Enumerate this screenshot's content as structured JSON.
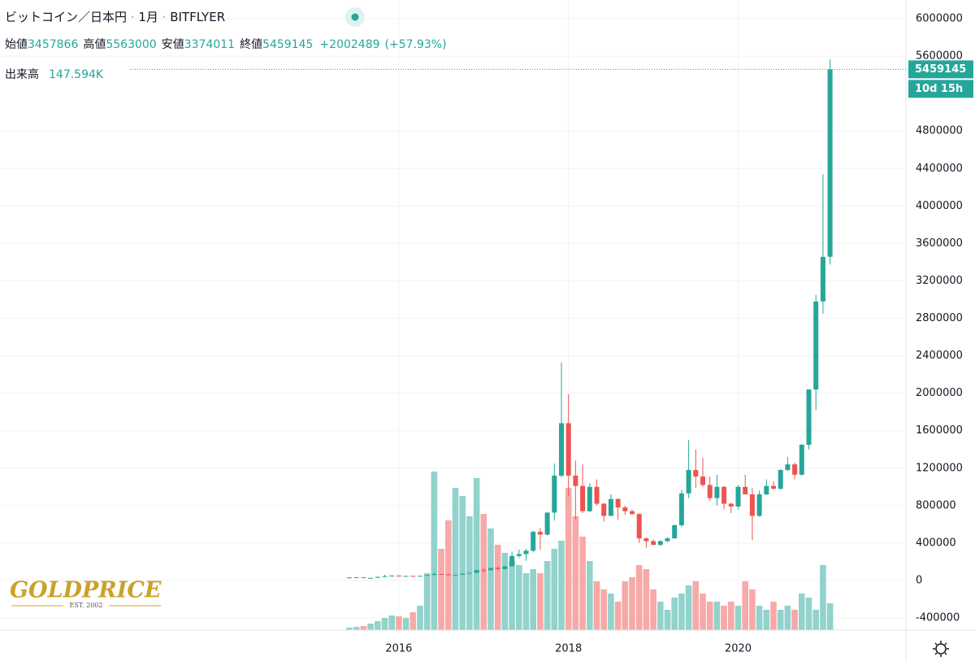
{
  "chart_data": {
    "type": "candlestick",
    "title": "ビットコイン／日本円",
    "interval": "1月",
    "exchange": "BITFLYER",
    "labels": {
      "open": "始値",
      "high": "高値",
      "low": "安値",
      "close": "終値",
      "volume": "出来高"
    },
    "change": "+2002489",
    "change_pct": "(+57.93%)",
    "volume_label": "147.594K",
    "countdown": "10d 15h",
    "watermark": {
      "name": "GOLDPRICE",
      "tagline": "EST. 2002"
    },
    "up_color": "#26a69a",
    "down_color": "#ef5350",
    "up_volume_color": "#92d2cc",
    "down_volume_color": "#f7a9a7",
    "ylim": [
      -530000,
      6200000
    ],
    "yticks": [
      6000000,
      5600000,
      4800000,
      4400000,
      4000000,
      3600000,
      3200000,
      2800000,
      2400000,
      2000000,
      1600000,
      1200000,
      800000,
      400000,
      0,
      -400000
    ],
    "grid": true,
    "categories": [
      null,
      null,
      null,
      null,
      null,
      null,
      null,
      "2016",
      null,
      null,
      null,
      null,
      null,
      null,
      null,
      null,
      null,
      null,
      null,
      null,
      null,
      null,
      null,
      null,
      null,
      null,
      null,
      null,
      null,
      null,
      null,
      "2018",
      null,
      null,
      null,
      null,
      null,
      null,
      null,
      null,
      null,
      null,
      null,
      null,
      null,
      null,
      null,
      null,
      null,
      null,
      null,
      null,
      null,
      null,
      null,
      "2020",
      null,
      null,
      null,
      null,
      null,
      null,
      null,
      null,
      null,
      null,
      null,
      null,
      null
    ],
    "open": [
      28000,
      32000,
      35000,
      28000,
      28000,
      38000,
      45000,
      52000,
      44000,
      49000,
      47000,
      50000,
      58000,
      69000,
      66000,
      59000,
      61000,
      73000,
      81000,
      112000,
      110000,
      135000,
      122000,
      152000,
      262000,
      282000,
      318000,
      520000,
      490000,
      725000,
      1120000,
      1680000,
      1120000,
      1010000,
      740000,
      1000000,
      820000,
      690000,
      870000,
      780000,
      740000,
      710000,
      450000,
      420000,
      380000,
      420000,
      450000,
      590000,
      930000,
      1180000,
      1110000,
      1020000,
      880000,
      1000000,
      820000,
      790000,
      1000000,
      920000,
      690000,
      920000,
      1010000,
      980000,
      1180000,
      1240000,
      1130000,
      1450000,
      2040000,
      2980000,
      3457866
    ],
    "high": [
      32000,
      38000,
      36000,
      30000,
      40000,
      60000,
      56000,
      55000,
      50000,
      50000,
      51000,
      60000,
      86000,
      72000,
      67000,
      62000,
      75000,
      82000,
      115000,
      130000,
      136000,
      150000,
      155000,
      310000,
      330000,
      340000,
      530000,
      560000,
      730000,
      1250000,
      2330000,
      1990000,
      1280000,
      1240000,
      1040000,
      1080000,
      830000,
      920000,
      880000,
      800000,
      760000,
      720000,
      460000,
      440000,
      430000,
      460000,
      600000,
      970000,
      1500000,
      1400000,
      1310000,
      1110000,
      1130000,
      1010000,
      830000,
      1020000,
      1130000,
      990000,
      960000,
      1080000,
      1060000,
      1190000,
      1320000,
      1260000,
      1460000,
      2040000,
      3050000,
      4340000,
      5563000
    ],
    "low": [
      27000,
      31000,
      25000,
      26000,
      28000,
      37000,
      42000,
      42000,
      42000,
      45000,
      46000,
      48000,
      58000,
      62000,
      52000,
      58000,
      61000,
      70000,
      80000,
      85000,
      105000,
      105000,
      118000,
      150000,
      240000,
      210000,
      300000,
      330000,
      480000,
      640000,
      1100000,
      900000,
      650000,
      720000,
      730000,
      800000,
      630000,
      690000,
      650000,
      700000,
      700000,
      400000,
      350000,
      380000,
      370000,
      410000,
      450000,
      570000,
      880000,
      990000,
      1000000,
      850000,
      800000,
      760000,
      720000,
      760000,
      920000,
      430000,
      680000,
      910000,
      970000,
      970000,
      1170000,
      1080000,
      1120000,
      1400000,
      1820000,
      2850000,
      3374011
    ],
    "close": [
      32000,
      35000,
      28000,
      28000,
      38000,
      45000,
      52000,
      44000,
      49000,
      47000,
      50000,
      58000,
      69000,
      66000,
      59000,
      61000,
      73000,
      81000,
      112000,
      110000,
      135000,
      122000,
      152000,
      262000,
      282000,
      318000,
      520000,
      490000,
      725000,
      1120000,
      1680000,
      1120000,
      1010000,
      740000,
      1000000,
      820000,
      690000,
      870000,
      780000,
      740000,
      710000,
      450000,
      420000,
      380000,
      420000,
      450000,
      590000,
      930000,
      1180000,
      1110000,
      1020000,
      880000,
      1000000,
      820000,
      790000,
      1000000,
      920000,
      690000,
      920000,
      1010000,
      980000,
      1180000,
      1240000,
      1130000,
      1450000,
      2040000,
      2980000,
      3456656,
      5459145
    ],
    "volume": [
      13410,
      17880,
      22350,
      35760,
      49170,
      67050,
      80460,
      75990,
      67050,
      98340,
      134100,
      312900,
      871650,
      447000,
      603450,
      782250,
      737550,
      625800,
      835890,
      639210,
      558750,
      469350,
      424650,
      379950,
      357600,
      312900,
      335250,
      312900,
      379950,
      447000,
      491700,
      782250,
      625800,
      514050,
      379950,
      268200,
      223500,
      201150,
      156450,
      268200,
      290550,
      357600,
      335250,
      223500,
      156450,
      111750,
      178800,
      201150,
      245850,
      268200,
      201150,
      156450,
      156450,
      134100,
      156450,
      134100,
      268200,
      223500,
      134100,
      111750,
      156450,
      111750,
      134100,
      111750,
      201150,
      178800,
      111750,
      357600,
      147594
    ]
  }
}
